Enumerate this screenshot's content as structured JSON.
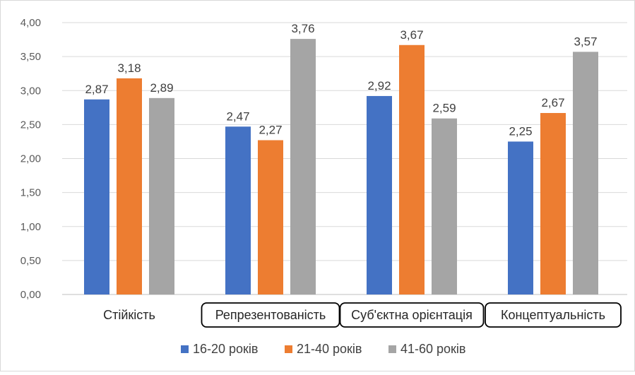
{
  "chart_data": {
    "type": "bar",
    "categories": [
      "Стійкість",
      "Репрезентованість",
      "Суб'єктна орієнтація",
      "Концептуальність"
    ],
    "series": [
      {
        "name": "16-20 років",
        "values": [
          2.87,
          2.47,
          2.92,
          2.25
        ],
        "labels": [
          "2,87",
          "2,47",
          "2,92",
          "2,25"
        ],
        "color": "#4472C4"
      },
      {
        "name": "21-40 років",
        "values": [
          3.18,
          2.27,
          3.67,
          2.67
        ],
        "labels": [
          "3,18",
          "2,27",
          "3,67",
          "2,67"
        ],
        "color": "#ED7D31"
      },
      {
        "name": "41-60 років",
        "values": [
          2.89,
          3.76,
          2.59,
          3.57
        ],
        "labels": [
          "2,89",
          "3,76",
          "2,59",
          "3,57"
        ],
        "color": "#A5A5A5"
      }
    ],
    "yticks": [
      "0,00",
      "0,50",
      "1,00",
      "1,50",
      "2,00",
      "2,50",
      "3,00",
      "3,50",
      "4,00"
    ],
    "ylim": [
      0,
      4
    ],
    "grid": true,
    "legend_position": "bottom",
    "boxed_categories": [
      false,
      true,
      true,
      true
    ]
  }
}
